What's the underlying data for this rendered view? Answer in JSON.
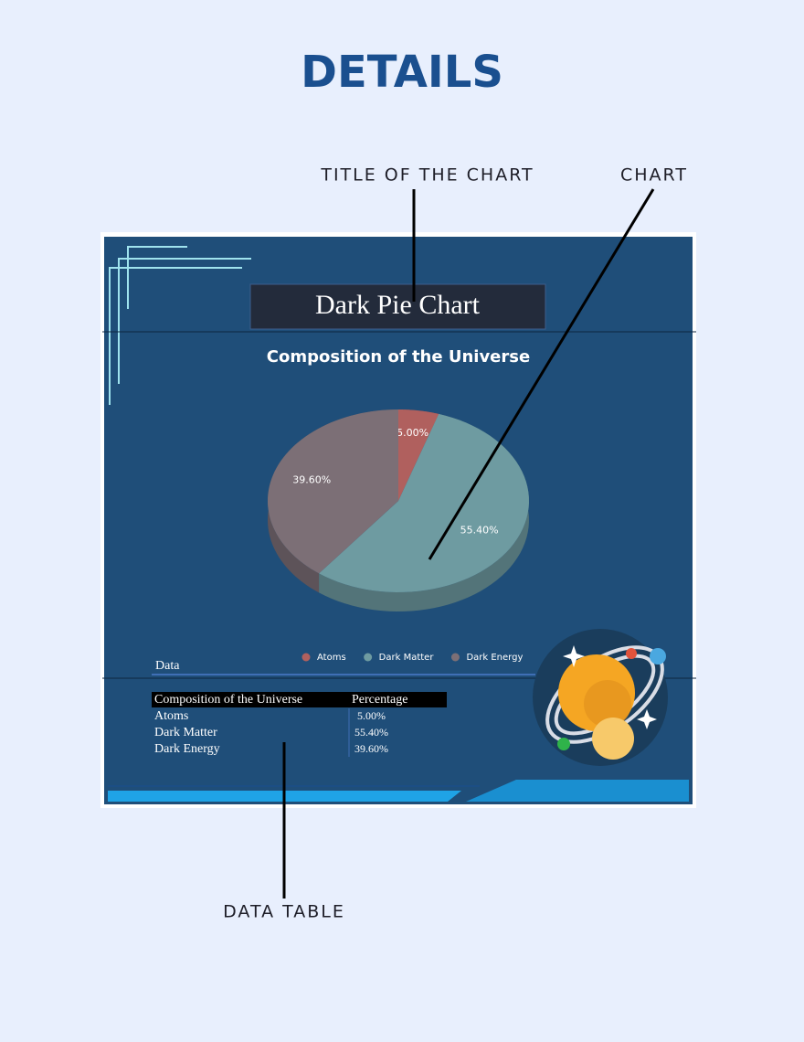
{
  "header": {
    "title": "DETAILS"
  },
  "callouts": {
    "title": "TITLE OF THE CHART",
    "chart": "CHART",
    "table": "DATA TABLE"
  },
  "sheet_title": "Dark Pie Chart",
  "chart_data": {
    "type": "pie",
    "title": "Composition of the Universe",
    "categories": [
      "Atoms",
      "Dark Matter",
      "Dark Energy"
    ],
    "values": [
      5,
      55.4,
      39.6
    ],
    "value_labels": [
      "5.00%",
      "55.40%",
      "39.60%"
    ],
    "colors": [
      "#b0605e",
      "#6e9ba1",
      "#7c6f76"
    ],
    "legend": "bottom"
  },
  "table": {
    "title": "Data",
    "header": [
      "Composition of the Universe",
      "Percentage"
    ],
    "rows": [
      [
        "Atoms",
        "5.00%"
      ],
      [
        "Dark Matter",
        "55.40%"
      ],
      [
        "Dark Energy",
        "39.60%"
      ]
    ]
  }
}
